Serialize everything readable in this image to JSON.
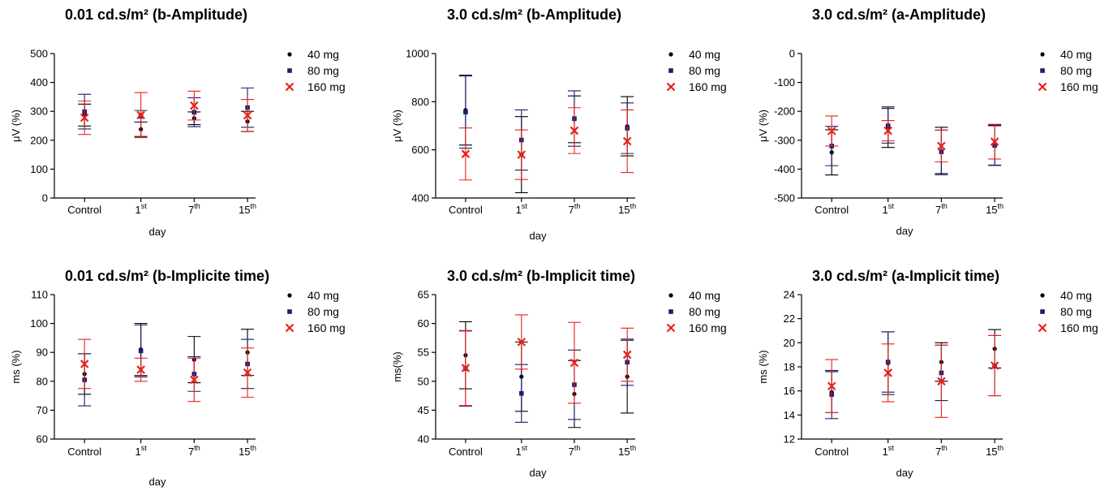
{
  "figure": {
    "xlabel": "day"
  },
  "legend": [
    {
      "name": "40 mg",
      "marker": "circle",
      "color": "#000000"
    },
    {
      "name": "80 mg",
      "marker": "square",
      "color": "#1c1c6e"
    },
    {
      "name": "160 mg",
      "marker": "x",
      "color": "#e8231b"
    }
  ],
  "colors": {
    "s40": "#000000",
    "s80": "#1c1c6e",
    "s160": "#e8231b"
  },
  "chart_data": [
    {
      "type": "scatter",
      "title": "0.01 cd.s/m² (b-Amplitude)",
      "ylabel": "μV (%)",
      "xlabel": "day",
      "categories": [
        {
          "base": "Control",
          "sup": ""
        },
        {
          "base": "1",
          "sup": "st"
        },
        {
          "base": "7",
          "sup": "th"
        },
        {
          "base": "15",
          "sup": "th"
        }
      ],
      "ylim": [
        0,
        500
      ],
      "yticks": [
        0,
        100,
        200,
        300,
        400,
        500
      ],
      "series": [
        {
          "name": "40 mg",
          "values": [
            287,
            238,
            276,
            265
          ],
          "err": [
            38,
            25,
            22,
            35
          ]
        },
        {
          "name": "80 mg",
          "values": [
            299,
            283,
            297,
            313
          ],
          "err": [
            60,
            20,
            50,
            68
          ]
        },
        {
          "name": "160 mg",
          "values": [
            278,
            287,
            320,
            286
          ],
          "err": [
            58,
            78,
            50,
            55
          ]
        }
      ]
    },
    {
      "type": "scatter",
      "title": "3.0 cd.s/m² (b-Amplitude)",
      "ylabel": "μV (%)",
      "xlabel": "day",
      "categories": [
        {
          "base": "Control",
          "sup": ""
        },
        {
          "base": "1",
          "sup": "st"
        },
        {
          "base": "7",
          "sup": "th"
        },
        {
          "base": "15",
          "sup": "th"
        }
      ],
      "ylim": [
        400,
        1000
      ],
      "yticks": [
        400,
        600,
        800,
        1000
      ],
      "series": [
        {
          "name": "40 mg",
          "values": [
            765,
            580,
            727,
            698
          ],
          "err": [
            145,
            158,
            97,
            123
          ]
        },
        {
          "name": "80 mg",
          "values": [
            757,
            641,
            730,
            690
          ],
          "err": [
            150,
            125,
            115,
            105
          ]
        },
        {
          "name": "160 mg",
          "values": [
            583,
            580,
            680,
            636
          ],
          "err": [
            108,
            103,
            95,
            130
          ]
        }
      ]
    },
    {
      "type": "scatter",
      "title": "3.0 cd.s/m² (a-Amplitude)",
      "ylabel": "μV (%)",
      "xlabel": "day",
      "categories": [
        {
          "base": "Control",
          "sup": ""
        },
        {
          "base": "1",
          "sup": "st"
        },
        {
          "base": "7",
          "sup": "th"
        },
        {
          "base": "15",
          "sup": "th"
        }
      ],
      "ylim": [
        -500,
        0
      ],
      "yticks": [
        -500,
        -400,
        -300,
        -200,
        -100,
        0
      ],
      "series": [
        {
          "name": "40 mg",
          "values": [
            -342,
            -255,
            -337,
            -317
          ],
          "err": [
            78,
            70,
            82,
            70
          ]
        },
        {
          "name": "80 mg",
          "values": [
            -320,
            -250,
            -340,
            -318
          ],
          "err": [
            68,
            60,
            75,
            68
          ]
        },
        {
          "name": "160 mg",
          "values": [
            -268,
            -267,
            -320,
            -305
          ],
          "err": [
            52,
            35,
            55,
            60
          ]
        }
      ]
    },
    {
      "type": "scatter",
      "title": "0.01 cd.s/m² (b-Implicite time)",
      "ylabel": "ms (%)",
      "xlabel": "day",
      "categories": [
        {
          "base": "Control",
          "sup": ""
        },
        {
          "base": "1",
          "sup": "st"
        },
        {
          "base": "7",
          "sup": "th"
        },
        {
          "base": "15",
          "sup": "th"
        }
      ],
      "ylim": [
        60,
        110
      ],
      "yticks": [
        60,
        70,
        80,
        90,
        100,
        110
      ],
      "series": [
        {
          "name": "40 mg",
          "values": [
            82.5,
            91,
            87.5,
            90
          ],
          "err": [
            7,
            9,
            8,
            8
          ]
        },
        {
          "name": "80 mg",
          "values": [
            80.5,
            90.5,
            82.5,
            86
          ],
          "err": [
            9,
            9,
            6,
            8.5
          ]
        },
        {
          "name": "160 mg",
          "values": [
            86,
            84,
            80.5,
            83
          ],
          "err": [
            8.5,
            4,
            7.5,
            8.5
          ]
        }
      ]
    },
    {
      "type": "scatter",
      "title": "3.0 cd.s/m² (b-Implicit time)",
      "ylabel": "ms(%)",
      "xlabel": "day",
      "categories": [
        {
          "base": "Control",
          "sup": ""
        },
        {
          "base": "1",
          "sup": "st"
        },
        {
          "base": "7",
          "sup": "th"
        },
        {
          "base": "15",
          "sup": "th"
        }
      ],
      "ylim": [
        40,
        65
      ],
      "yticks": [
        40,
        45,
        50,
        55,
        60,
        65
      ],
      "series": [
        {
          "name": "40 mg",
          "values": [
            54.5,
            50.8,
            47.8,
            50.8
          ],
          "err": [
            5.8,
            6,
            5.8,
            6.3
          ]
        },
        {
          "name": "80 mg",
          "values": [
            52.2,
            47.9,
            49.4,
            53.3
          ],
          "err": [
            6.5,
            5,
            6,
            4
          ]
        },
        {
          "name": "160 mg",
          "values": [
            52.3,
            56.8,
            53.2,
            54.6
          ],
          "err": [
            6.5,
            4.7,
            7,
            4.6
          ]
        }
      ]
    },
    {
      "type": "scatter",
      "title": "3.0 cd.s/m² (a-Implicit time)",
      "ylabel": "ms (%)",
      "xlabel": "day",
      "categories": [
        {
          "base": "Control",
          "sup": ""
        },
        {
          "base": "1",
          "sup": "st"
        },
        {
          "base": "7",
          "sup": "th"
        },
        {
          "base": "15",
          "sup": "th"
        }
      ],
      "ylim": [
        12,
        24
      ],
      "yticks": [
        12,
        14,
        16,
        18,
        20,
        22,
        24
      ],
      "series": [
        {
          "name": "40 mg",
          "values": [
            15.9,
            18.3,
            18.4,
            19.5
          ],
          "err": [
            1.7,
            2.6,
            1.6,
            1.6
          ]
        },
        {
          "name": "80 mg",
          "values": [
            15.7,
            18.4,
            17.5,
            18.1
          ],
          "err": [
            2,
            2.5,
            2.3,
            2.5
          ]
        },
        {
          "name": "160 mg",
          "values": [
            16.4,
            17.5,
            16.8,
            18.1
          ],
          "err": [
            2.2,
            2.4,
            3,
            2.5
          ]
        }
      ]
    }
  ]
}
